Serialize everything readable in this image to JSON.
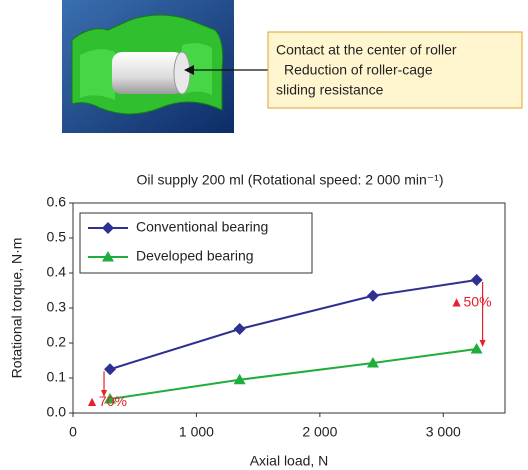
{
  "callout": [
    "Contact at the center of roller",
    "Reduction of roller-cage",
    "sliding resistance"
  ],
  "chart_data": {
    "type": "line",
    "title": "Oil supply 200 ml (Rotational speed: 2 000 min⁻¹)",
    "x_label": "Axial load, N",
    "y_label": "Rotational torque, N·m",
    "x": [
      300,
      1350,
      2430,
      3270
    ],
    "series": [
      {
        "name": "Conventional bearing",
        "color": "#2e3192",
        "marker": "diamond",
        "values": [
          0.125,
          0.24,
          0.335,
          0.38
        ]
      },
      {
        "name": "Developed bearing",
        "color": "#1fae3c",
        "marker": "triangle",
        "values": [
          0.04,
          0.095,
          0.143,
          0.183
        ]
      }
    ],
    "annotations": [
      {
        "text": "▲70%",
        "color": "#e8202a"
      },
      {
        "text": "▲50%",
        "color": "#e8202a"
      }
    ],
    "xlim": [
      0,
      3500
    ],
    "xticks": [
      0,
      {
        "value": 1000,
        "label": "1 000"
      },
      {
        "value": 2000,
        "label": "2 000"
      },
      {
        "value": 3000,
        "label": "3 000"
      }
    ],
    "ylim": [
      0,
      0.6
    ],
    "yticks": [
      {
        "value": 0,
        "label": "0.0"
      },
      0.1,
      0.2,
      0.3,
      0.4,
      0.5,
      0.6
    ],
    "grid": false,
    "legend": "upper left"
  }
}
